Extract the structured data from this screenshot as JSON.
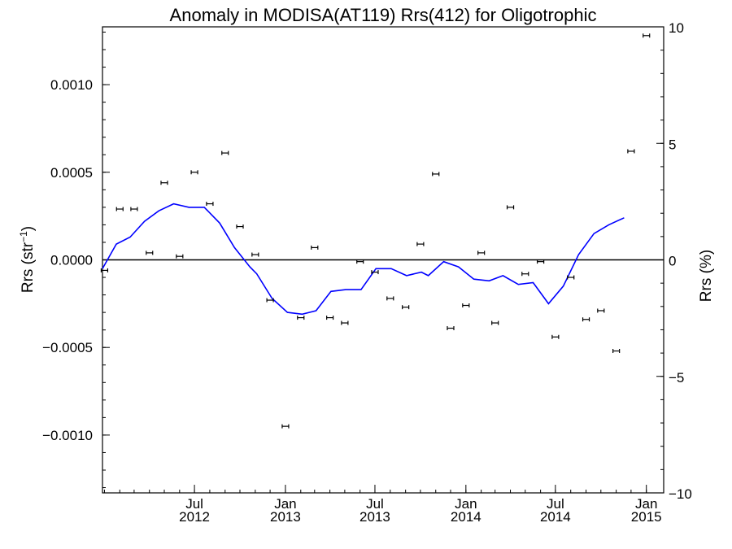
{
  "chart_data": {
    "type": "scatter",
    "title": "Anomaly in MODISA(AT119) Rrs(412) for Oligotrophic",
    "ylabel": "Rrs (str",
    "ylabel_sup": "−1",
    "ylabel_close": ")",
    "y2label": "Rrs (%)",
    "ylim": [
      -0.00133,
      0.00133
    ],
    "y2lim": [
      -10,
      10
    ],
    "xlim": [
      "2011-12-28",
      "2015-02-05"
    ],
    "yticks": [
      {
        "value": 0.001,
        "label": "0.0010"
      },
      {
        "value": 0.0005,
        "label": "0.0005"
      },
      {
        "value": 0,
        "label": "0.0000"
      },
      {
        "value": -0.0005,
        "label": "−0.0005"
      },
      {
        "value": -0.001,
        "label": "−0.0010"
      }
    ],
    "y2ticks": [
      {
        "value": 10,
        "label": "10"
      },
      {
        "value": 5,
        "label": "5"
      },
      {
        "value": 0,
        "label": "0"
      },
      {
        "value": -5,
        "label": "−5"
      },
      {
        "value": -10,
        "label": "−10"
      }
    ],
    "xticks": [
      {
        "date": "2012-07-01",
        "line1": "Jul",
        "line2": "2012"
      },
      {
        "date": "2013-01-01",
        "line1": "Jan",
        "line2": "2013"
      },
      {
        "date": "2013-07-01",
        "line1": "Jul",
        "line2": "2013"
      },
      {
        "date": "2014-01-01",
        "line1": "Jan",
        "line2": "2014"
      },
      {
        "date": "2014-07-01",
        "line1": "Jul",
        "line2": "2014"
      },
      {
        "date": "2015-01-01",
        "line1": "Jan",
        "line2": "2015"
      }
    ],
    "grid": false,
    "series": [
      {
        "kind": "points-with-errorbars",
        "color": "#000000",
        "points": [
          {
            "x": "2012-01-01",
            "y": -6e-05
          },
          {
            "x": "2012-02-01",
            "y": 0.00029
          },
          {
            "x": "2012-03-01",
            "y": 0.00029
          },
          {
            "x": "2012-04-01",
            "y": 4e-05
          },
          {
            "x": "2012-05-01",
            "y": 0.00044
          },
          {
            "x": "2012-06-01",
            "y": 2e-05
          },
          {
            "x": "2012-07-01",
            "y": 0.0005
          },
          {
            "x": "2012-08-01",
            "y": 0.00032
          },
          {
            "x": "2012-09-01",
            "y": 0.00061
          },
          {
            "x": "2012-10-01",
            "y": 0.00019
          },
          {
            "x": "2012-11-01",
            "y": 3e-05
          },
          {
            "x": "2012-12-01",
            "y": -0.00023
          },
          {
            "x": "2013-01-01",
            "y": -0.00095
          },
          {
            "x": "2013-02-01",
            "y": -0.00033
          },
          {
            "x": "2013-03-01",
            "y": 7e-05
          },
          {
            "x": "2013-04-01",
            "y": -0.00033
          },
          {
            "x": "2013-05-01",
            "y": -0.00036
          },
          {
            "x": "2013-06-01",
            "y": -1e-05
          },
          {
            "x": "2013-07-01",
            "y": -7e-05
          },
          {
            "x": "2013-08-01",
            "y": -0.00022
          },
          {
            "x": "2013-09-01",
            "y": -0.00027
          },
          {
            "x": "2013-10-01",
            "y": 9e-05
          },
          {
            "x": "2013-11-01",
            "y": 0.00049
          },
          {
            "x": "2013-12-01",
            "y": -0.00039
          },
          {
            "x": "2014-01-01",
            "y": -0.00026
          },
          {
            "x": "2014-02-01",
            "y": 4e-05
          },
          {
            "x": "2014-03-01",
            "y": -0.00036
          },
          {
            "x": "2014-04-01",
            "y": 0.0003
          },
          {
            "x": "2014-05-01",
            "y": -8e-05
          },
          {
            "x": "2014-06-01",
            "y": -1e-05
          },
          {
            "x": "2014-07-01",
            "y": -0.00044
          },
          {
            "x": "2014-08-01",
            "y": -0.0001
          },
          {
            "x": "2014-09-01",
            "y": -0.00034
          },
          {
            "x": "2014-10-01",
            "y": -0.00029
          },
          {
            "x": "2014-11-01",
            "y": -0.00052
          },
          {
            "x": "2014-12-01",
            "y": 0.00062
          },
          {
            "x": "2015-01-01",
            "y": 0.00128
          }
        ]
      },
      {
        "kind": "line",
        "color": "#0000ff",
        "points": [
          {
            "x": "2011-12-28",
            "y": -5e-05
          },
          {
            "x": "2012-01-25",
            "y": 9e-05
          },
          {
            "x": "2012-02-22",
            "y": 0.00013
          },
          {
            "x": "2012-03-22",
            "y": 0.00022
          },
          {
            "x": "2012-04-20",
            "y": 0.00028
          },
          {
            "x": "2012-05-20",
            "y": 0.00032
          },
          {
            "x": "2012-06-20",
            "y": 0.0003
          },
          {
            "x": "2012-07-21",
            "y": 0.0003
          },
          {
            "x": "2012-08-21",
            "y": 0.00021
          },
          {
            "x": "2012-09-20",
            "y": 7e-05
          },
          {
            "x": "2012-10-21",
            "y": -4e-05
          },
          {
            "x": "2012-11-04",
            "y": -8e-05
          },
          {
            "x": "2012-12-05",
            "y": -0.00022
          },
          {
            "x": "2013-01-05",
            "y": -0.0003
          },
          {
            "x": "2013-02-04",
            "y": -0.00031
          },
          {
            "x": "2013-03-04",
            "y": -0.00029
          },
          {
            "x": "2013-04-03",
            "y": -0.00018
          },
          {
            "x": "2013-05-03",
            "y": -0.00017
          },
          {
            "x": "2013-06-03",
            "y": -0.00017
          },
          {
            "x": "2013-07-03",
            "y": -5e-05
          },
          {
            "x": "2013-08-03",
            "y": -5e-05
          },
          {
            "x": "2013-09-03",
            "y": -9e-05
          },
          {
            "x": "2013-10-03",
            "y": -7e-05
          },
          {
            "x": "2013-10-17",
            "y": -9e-05
          },
          {
            "x": "2013-11-17",
            "y": -1e-05
          },
          {
            "x": "2013-12-17",
            "y": -4e-05
          },
          {
            "x": "2014-01-17",
            "y": -0.00011
          },
          {
            "x": "2014-02-17",
            "y": -0.00012
          },
          {
            "x": "2014-03-17",
            "y": -9e-05
          },
          {
            "x": "2014-04-17",
            "y": -0.00014
          },
          {
            "x": "2014-05-17",
            "y": -0.00013
          },
          {
            "x": "2014-06-17",
            "y": -0.00025
          },
          {
            "x": "2014-07-17",
            "y": -0.00015
          },
          {
            "x": "2014-08-17",
            "y": 3e-05
          },
          {
            "x": "2014-09-17",
            "y": 0.00015
          },
          {
            "x": "2014-10-17",
            "y": 0.0002
          },
          {
            "x": "2014-11-17",
            "y": 0.00024
          }
        ]
      }
    ]
  }
}
